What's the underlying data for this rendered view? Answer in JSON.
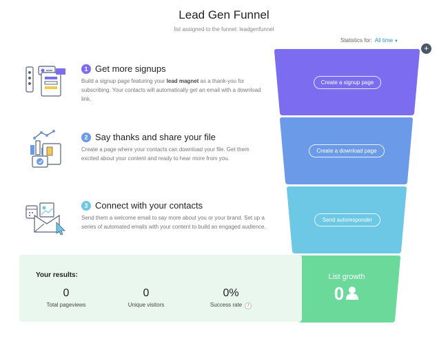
{
  "header": {
    "title": "Lead Gen Funnel",
    "subtitle": "list assigned to the funnel: leadgenfunnel"
  },
  "statistics": {
    "label": "Statistics for:",
    "period": "All time"
  },
  "steps": [
    {
      "number": "1",
      "title": "Get more signups",
      "desc_before": "Build a signup page featuring your ",
      "desc_bold": "lead magnet",
      "desc_after": " as a thank-you for subscribing. Your contacts will automatically get an email with a download link.",
      "color": "#7b6cf0",
      "button": "Create a signup page",
      "icon": "signup-form-icon"
    },
    {
      "number": "2",
      "title": "Say thanks and share your file",
      "desc": "Create a page where your contacts can download your file. Get them excited about your content and ready to hear more from you.",
      "color": "#6b9be8",
      "button": "Create a download page",
      "icon": "download-file-icon"
    },
    {
      "number": "3",
      "title": "Connect with your contacts",
      "desc": "Send them a welcome email to say more about you or your brand. Set up a series of automated emails with your content to build an engaged audience.",
      "color": "#6cc8e4",
      "button": "Send autoresponder",
      "icon": "email-envelope-icon"
    }
  ],
  "results": {
    "title": "Your results:",
    "metrics": [
      {
        "value": "0",
        "label": "Total pageviews"
      },
      {
        "value": "0",
        "label": "Unique visitors"
      },
      {
        "value": "0%",
        "label": "Success rate"
      }
    ]
  },
  "growth": {
    "title": "List growth",
    "value": "0",
    "color": "#6bd99a"
  }
}
